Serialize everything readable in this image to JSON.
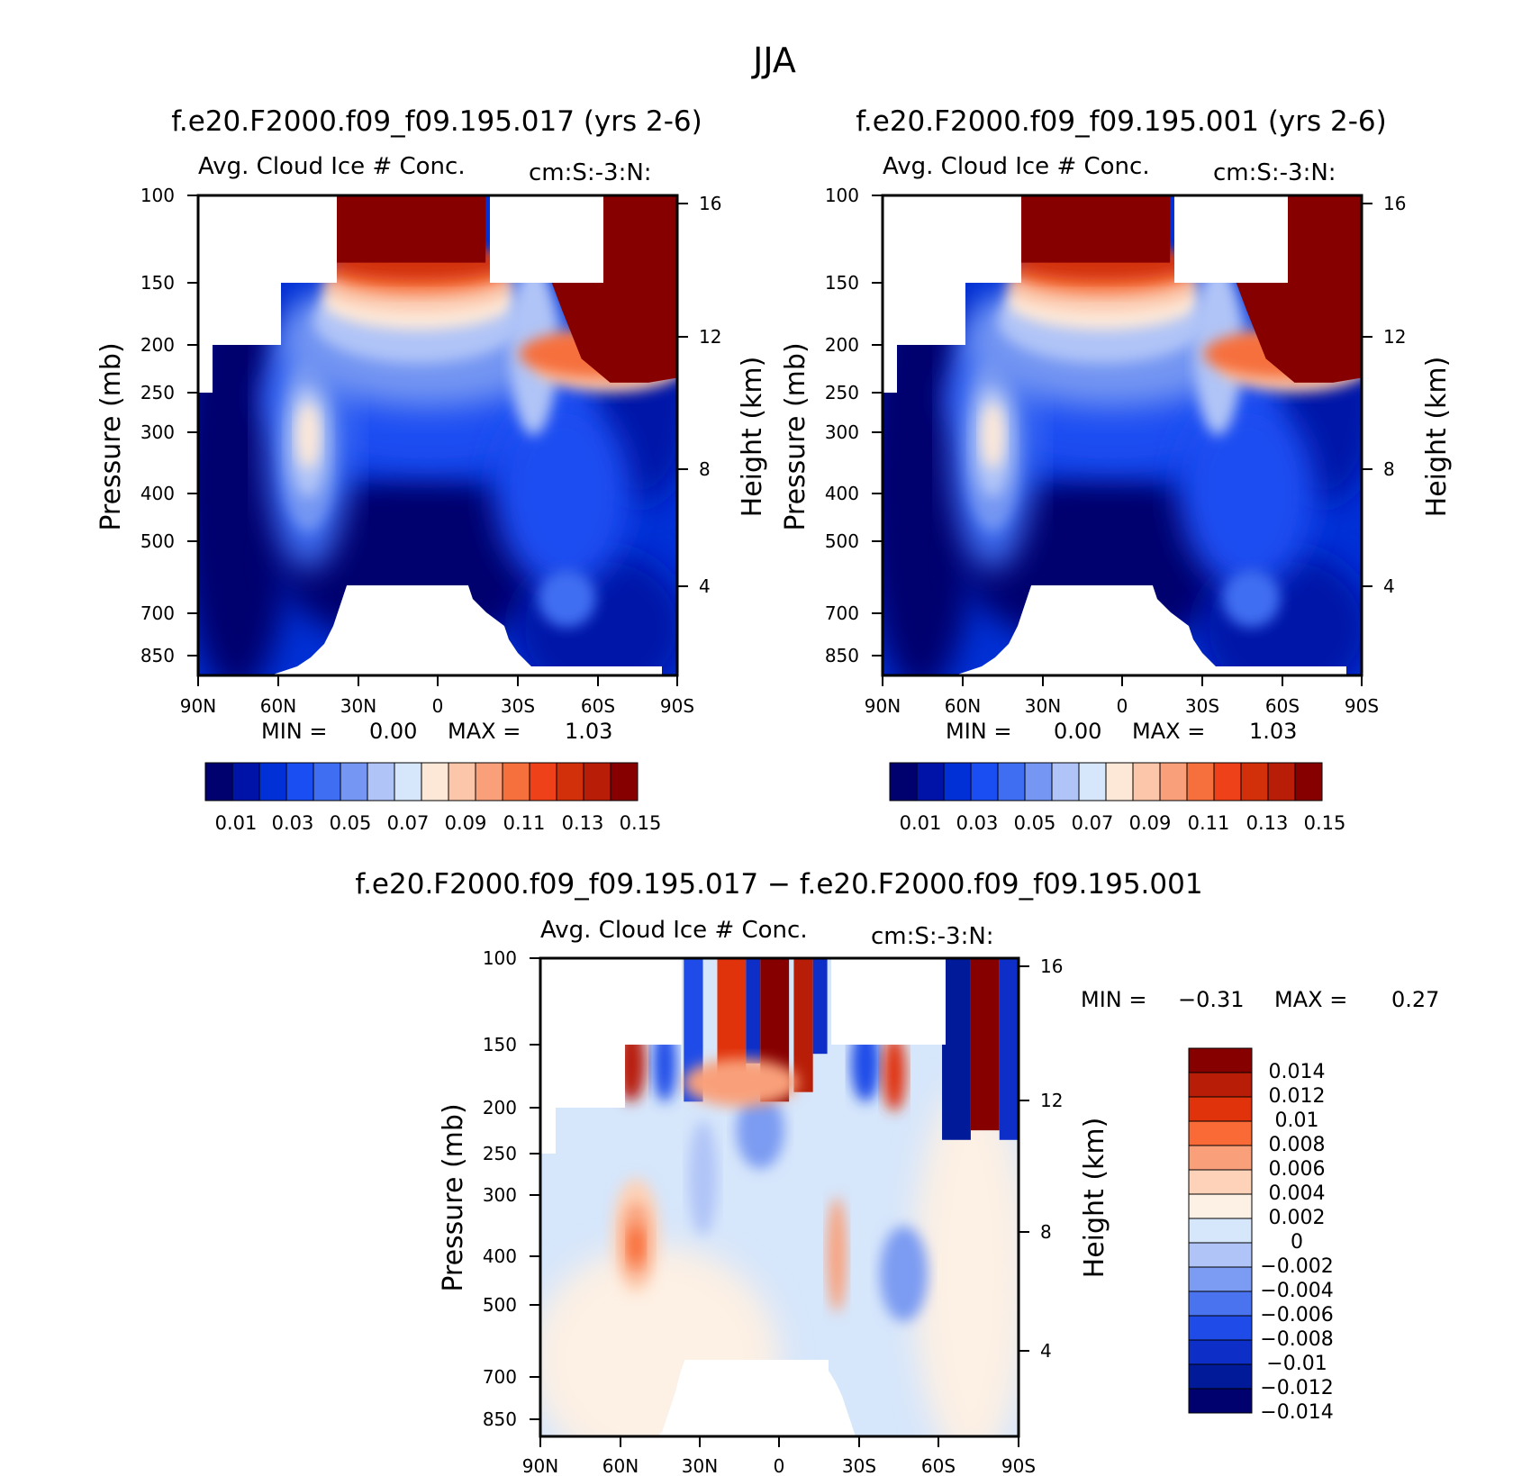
{
  "figure_title": "JJA",
  "chart_data": [
    {
      "type": "contour",
      "id": "p1",
      "title": "f.e20.F2000.f09_f09.195.017 (yrs 2-6)",
      "subtitle_left": "Avg. Cloud Ice # Conc.",
      "subtitle_right": "cm:S:-3:N:",
      "xlabel": "",
      "ylabel": "Pressure (mb)",
      "ylabel_right": "Height (km)",
      "x_ticks": [
        "90N",
        "60N",
        "30N",
        "0",
        "30S",
        "60S",
        "90S"
      ],
      "x_values": [
        90,
        60,
        30,
        0,
        -30,
        -60,
        -90
      ],
      "y_ticks": [
        "100",
        "150",
        "200",
        "250",
        "300",
        "400",
        "500",
        "700",
        "850"
      ],
      "y_values": [
        100,
        150,
        200,
        250,
        300,
        400,
        500,
        700,
        850
      ],
      "y_ticks_right": [
        "16",
        "12",
        "8",
        "4"
      ],
      "y_values_right": [
        16,
        12,
        8,
        4
      ],
      "min_label": "MIN =",
      "min_value": "0.00",
      "max_label": "MAX =",
      "max_value": "1.03",
      "colorbar_ticks": [
        "0.01",
        "0.03",
        "0.05",
        "0.07",
        "0.09",
        "0.11",
        "0.13",
        "0.15"
      ]
    },
    {
      "type": "contour",
      "id": "p2",
      "title": "f.e20.F2000.f09_f09.195.001 (yrs 2-6)",
      "subtitle_left": "Avg. Cloud Ice # Conc.",
      "subtitle_right": "cm:S:-3:N:",
      "xlabel": "",
      "ylabel": "Pressure (mb)",
      "ylabel_right": "Height (km)",
      "x_ticks": [
        "90N",
        "60N",
        "30N",
        "0",
        "30S",
        "60S",
        "90S"
      ],
      "x_values": [
        90,
        60,
        30,
        0,
        -30,
        -60,
        -90
      ],
      "y_ticks": [
        "100",
        "150",
        "200",
        "250",
        "300",
        "400",
        "500",
        "700",
        "850"
      ],
      "y_values": [
        100,
        150,
        200,
        250,
        300,
        400,
        500,
        700,
        850
      ],
      "y_ticks_right": [
        "16",
        "12",
        "8",
        "4"
      ],
      "y_values_right": [
        16,
        12,
        8,
        4
      ],
      "min_label": "MIN =",
      "min_value": "0.00",
      "max_label": "MAX =",
      "max_value": "1.03",
      "colorbar_ticks": [
        "0.01",
        "0.03",
        "0.05",
        "0.07",
        "0.09",
        "0.11",
        "0.13",
        "0.15"
      ]
    },
    {
      "type": "contour",
      "id": "p3",
      "title": "f.e20.F2000.f09_f09.195.017 − f.e20.F2000.f09_f09.195.001",
      "subtitle_left": "Avg. Cloud Ice # Conc.",
      "subtitle_right": "cm:S:-3:N:",
      "xlabel": "",
      "ylabel": "Pressure (mb)",
      "ylabel_right": "Height (km)",
      "x_ticks": [
        "90N",
        "60N",
        "30N",
        "0",
        "30S",
        "60S",
        "90S"
      ],
      "x_values": [
        90,
        60,
        30,
        0,
        -30,
        -60,
        -90
      ],
      "y_ticks": [
        "100",
        "150",
        "200",
        "250",
        "300",
        "400",
        "500",
        "700",
        "850"
      ],
      "y_values": [
        100,
        150,
        200,
        250,
        300,
        400,
        500,
        700,
        850
      ],
      "y_ticks_right": [
        "16",
        "12",
        "8",
        "4"
      ],
      "y_values_right": [
        16,
        12,
        8,
        4
      ],
      "min_label": "MIN =",
      "min_value": "−0.31",
      "max_label": "MAX =",
      "max_value": "0.27",
      "colorbar_ticks": [
        "0.014",
        "0.012",
        "0.01",
        "0.008",
        "0.006",
        "0.004",
        "0.002",
        "0",
        "−0.002",
        "−0.004",
        "−0.006",
        "−0.008",
        "−0.01",
        "−0.012",
        "−0.014"
      ]
    }
  ],
  "colors": {
    "seq": [
      "#00006e",
      "#0013a8",
      "#0030d6",
      "#1a4df2",
      "#3f6ef2",
      "#7596f2",
      "#b0c4f7",
      "#d6e6fb",
      "#fde8d8",
      "#fbc6aa",
      "#f9a07a",
      "#f6703e",
      "#ee4019",
      "#d2300a",
      "#b81e07",
      "#870000"
    ],
    "diff": [
      "#870000",
      "#b81e07",
      "#e0330c",
      "#f96a36",
      "#f9a07a",
      "#fdd2b8",
      "#fdf0e4",
      "#d6e6fb",
      "#b0c4f7",
      "#7c9bf2",
      "#4a73f0",
      "#1f4ce8",
      "#0d2fc8",
      "#001a9a",
      "#00006e"
    ]
  }
}
